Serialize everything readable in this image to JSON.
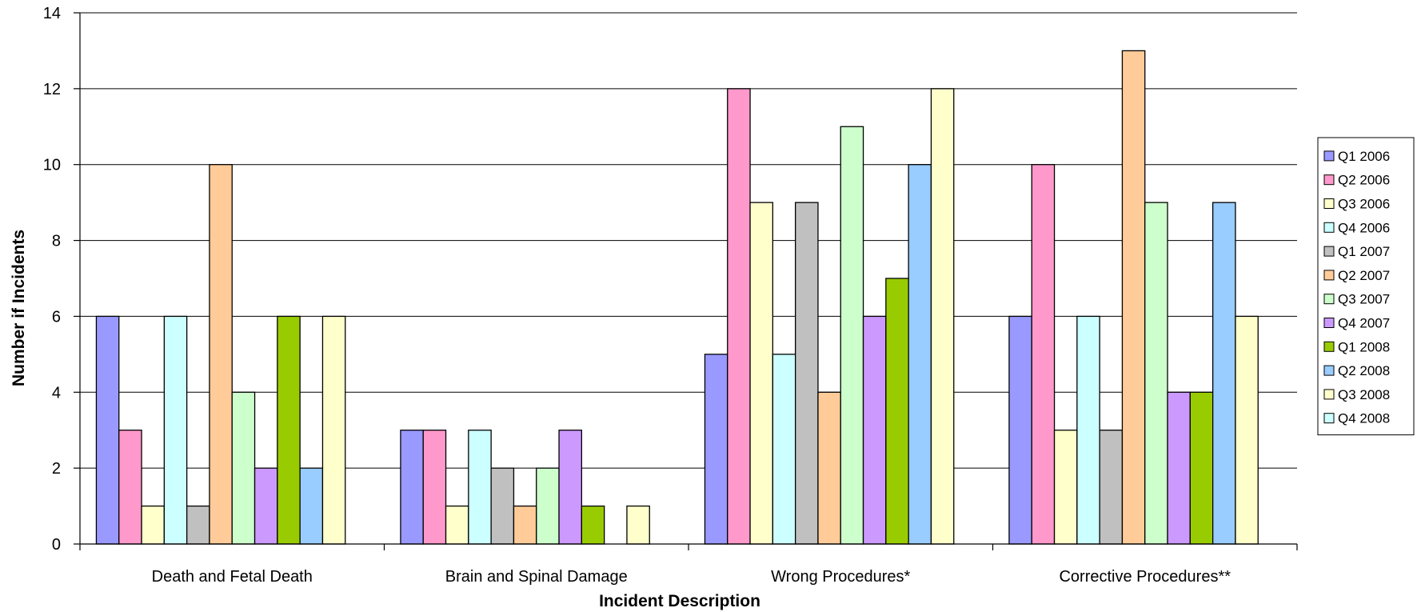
{
  "chart_data": {
    "type": "bar",
    "title": "",
    "xlabel": "Incident Description",
    "ylabel": "Number if Incidents",
    "ylim": [
      0,
      14
    ],
    "yticks": [
      0,
      2,
      4,
      6,
      8,
      10,
      12,
      14
    ],
    "grid": true,
    "legend_position": "right",
    "categories": [
      "Death and Fetal Death",
      "Brain and Spinal Damage",
      "Wrong Procedures*",
      "Corrective Procedures**"
    ],
    "series": [
      {
        "name": "Q1 2006",
        "color": "#9999ff",
        "values": [
          6,
          3,
          5,
          6
        ]
      },
      {
        "name": "Q2 2006",
        "color": "#ff99cc",
        "values": [
          3,
          3,
          12,
          10
        ]
      },
      {
        "name": "Q3 2006",
        "color": "#ffffcc",
        "values": [
          1,
          1,
          9,
          3
        ]
      },
      {
        "name": "Q4 2006",
        "color": "#ccffff",
        "values": [
          6,
          3,
          5,
          6
        ]
      },
      {
        "name": "Q1 2007",
        "color": "#c0c0c0",
        "values": [
          1,
          2,
          9,
          3
        ]
      },
      {
        "name": "Q2 2007",
        "color": "#ffcc99",
        "values": [
          10,
          1,
          4,
          13
        ]
      },
      {
        "name": "Q3 2007",
        "color": "#ccffcc",
        "values": [
          4,
          2,
          11,
          9
        ]
      },
      {
        "name": "Q4 2007",
        "color": "#cc99ff",
        "values": [
          2,
          3,
          6,
          4
        ]
      },
      {
        "name": "Q1 2008",
        "color": "#99cc00",
        "values": [
          6,
          1,
          7,
          4
        ]
      },
      {
        "name": "Q2 2008",
        "color": "#99ccff",
        "values": [
          2,
          0,
          10,
          9
        ]
      },
      {
        "name": "Q3 2008",
        "color": "#ffffcc",
        "values": [
          6,
          1,
          12,
          6
        ]
      },
      {
        "name": "Q4 2008",
        "color": "#ccffff",
        "values": [
          0,
          0,
          0,
          0
        ]
      }
    ]
  }
}
